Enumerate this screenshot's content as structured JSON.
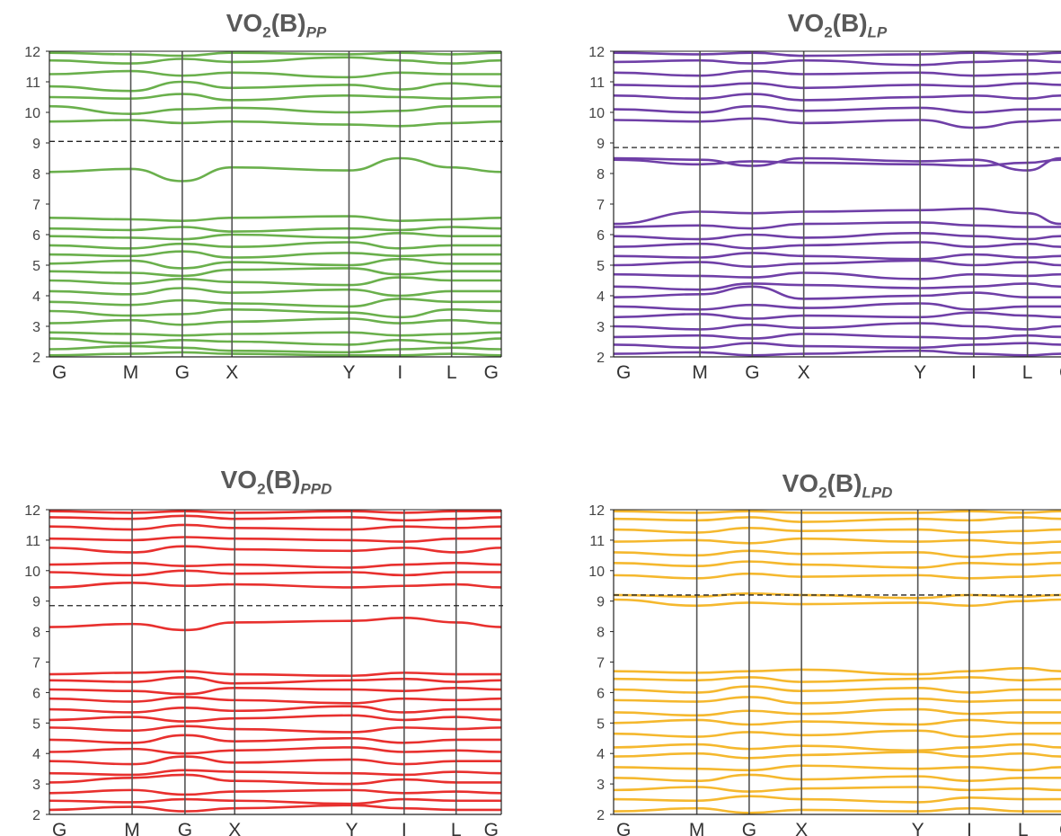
{
  "chart_data": [
    {
      "type": "line",
      "title": {
        "main": "VO",
        "num": "2",
        "mid": "(B)",
        "sub": "PP"
      },
      "ylim": [
        2,
        12
      ],
      "y_ticks": [
        "2",
        "3",
        "4",
        "5",
        "6",
        "7",
        "8",
        "9",
        "10",
        "11",
        "12"
      ],
      "k_labels": [
        "G",
        "M",
        "G",
        "X",
        "Y",
        "I",
        "L",
        "G"
      ],
      "k_positions": [
        0,
        0.18,
        0.294,
        0.404,
        0.663,
        0.776,
        0.89,
        1.0
      ],
      "fermi_level": 9.05,
      "band_color": "#6ab04c",
      "bands": [
        [
          2.05,
          2.1,
          2.15,
          2.1,
          2.05,
          2.05,
          2.1,
          2.05
        ],
        [
          2.25,
          2.35,
          2.3,
          2.2,
          2.15,
          2.25,
          2.3,
          2.25
        ],
        [
          2.6,
          2.45,
          2.55,
          2.5,
          2.4,
          2.55,
          2.45,
          2.6
        ],
        [
          2.8,
          2.75,
          2.7,
          2.75,
          2.8,
          2.7,
          2.75,
          2.8
        ],
        [
          3.1,
          3.2,
          3.05,
          3.15,
          3.25,
          3.1,
          3.2,
          3.1
        ],
        [
          3.5,
          3.35,
          3.4,
          3.55,
          3.45,
          3.3,
          3.55,
          3.5
        ],
        [
          3.8,
          3.7,
          3.85,
          3.75,
          3.65,
          3.9,
          3.8,
          3.8
        ],
        [
          4.15,
          4.05,
          4.25,
          4.1,
          4.2,
          4.0,
          4.15,
          4.15
        ],
        [
          4.5,
          4.4,
          4.55,
          4.45,
          4.35,
          4.6,
          4.5,
          4.5
        ],
        [
          4.8,
          4.75,
          4.65,
          4.85,
          4.9,
          4.7,
          4.8,
          4.8
        ],
        [
          5.05,
          5.15,
          4.9,
          5.1,
          5.0,
          5.2,
          5.05,
          5.05
        ],
        [
          5.35,
          5.3,
          5.45,
          5.25,
          5.4,
          5.3,
          5.35,
          5.35
        ],
        [
          5.65,
          5.55,
          5.7,
          5.6,
          5.75,
          5.55,
          5.65,
          5.65
        ],
        [
          5.95,
          5.9,
          5.85,
          6.0,
          5.9,
          6.05,
          5.95,
          5.95
        ],
        [
          6.2,
          6.15,
          6.25,
          6.1,
          6.2,
          6.15,
          6.25,
          6.2
        ],
        [
          6.55,
          6.5,
          6.45,
          6.55,
          6.6,
          6.45,
          6.5,
          6.55
        ],
        [
          8.05,
          8.15,
          7.75,
          8.2,
          8.1,
          8.5,
          8.2,
          8.05
        ],
        [
          9.7,
          9.75,
          9.65,
          9.7,
          9.6,
          9.55,
          9.65,
          9.7
        ],
        [
          10.2,
          9.95,
          10.1,
          10.15,
          10.0,
          10.05,
          10.2,
          10.2
        ],
        [
          10.5,
          10.45,
          10.6,
          10.4,
          10.55,
          10.5,
          10.45,
          10.5
        ],
        [
          10.85,
          10.7,
          11.0,
          10.8,
          10.9,
          10.75,
          10.95,
          10.85
        ],
        [
          11.25,
          11.35,
          11.2,
          11.3,
          11.15,
          11.3,
          11.25,
          11.25
        ],
        [
          11.7,
          11.6,
          11.75,
          11.65,
          11.8,
          11.7,
          11.6,
          11.7
        ],
        [
          11.95,
          11.9,
          11.85,
          11.95,
          11.9,
          11.95,
          11.9,
          11.95
        ]
      ]
    },
    {
      "type": "line",
      "title": {
        "main": "VO",
        "num": "2",
        "mid": "(B)",
        "sub": "LP"
      },
      "ylim": [
        2,
        12
      ],
      "y_ticks": [
        "2",
        "3",
        "4",
        "5",
        "6",
        "7",
        "8",
        "9",
        "10",
        "11",
        "12"
      ],
      "k_labels": [
        "G",
        "M",
        "G",
        "X",
        "Y",
        "I",
        "L",
        "G"
      ],
      "k_positions": [
        0,
        0.193,
        0.31,
        0.425,
        0.685,
        0.805,
        0.925,
        1.0
      ],
      "fermi_level": 8.85,
      "band_color": "#6f3fa7",
      "bands": [
        [
          2.1,
          2.15,
          2.05,
          2.1,
          2.2,
          2.1,
          2.05,
          2.1
        ],
        [
          2.4,
          2.3,
          2.45,
          2.35,
          2.3,
          2.4,
          2.45,
          2.4
        ],
        [
          2.65,
          2.7,
          2.6,
          2.75,
          2.65,
          2.6,
          2.7,
          2.65
        ],
        [
          3.0,
          2.9,
          3.05,
          2.95,
          3.1,
          3.0,
          2.9,
          3.0
        ],
        [
          3.3,
          3.4,
          3.25,
          3.35,
          3.3,
          3.45,
          3.35,
          3.3
        ],
        [
          3.65,
          3.55,
          3.7,
          3.6,
          3.75,
          3.55,
          3.65,
          3.65
        ],
        [
          3.95,
          4.05,
          4.3,
          3.9,
          4.0,
          4.1,
          3.95,
          3.95
        ],
        [
          4.3,
          4.2,
          4.4,
          4.35,
          4.25,
          4.3,
          4.4,
          4.3
        ],
        [
          4.7,
          4.65,
          4.6,
          4.75,
          4.55,
          4.7,
          4.65,
          4.7
        ],
        [
          5.0,
          5.1,
          4.95,
          5.05,
          5.15,
          5.0,
          5.1,
          5.0
        ],
        [
          5.3,
          5.25,
          5.4,
          5.3,
          5.2,
          5.35,
          5.25,
          5.3
        ],
        [
          5.6,
          5.7,
          5.55,
          5.65,
          5.75,
          5.6,
          5.7,
          5.6
        ],
        [
          5.95,
          5.85,
          6.0,
          5.9,
          6.05,
          5.95,
          5.85,
          5.95
        ],
        [
          6.25,
          6.3,
          6.2,
          6.35,
          6.4,
          6.3,
          6.25,
          6.25
        ],
        [
          6.35,
          6.75,
          6.7,
          6.75,
          6.8,
          6.85,
          6.7,
          6.35
        ],
        [
          8.45,
          8.3,
          8.4,
          8.35,
          8.3,
          8.25,
          8.35,
          8.45
        ],
        [
          8.5,
          8.45,
          8.25,
          8.5,
          8.4,
          8.45,
          8.1,
          8.5
        ],
        [
          9.75,
          9.7,
          9.8,
          9.65,
          9.75,
          9.5,
          9.7,
          9.75
        ],
        [
          10.1,
          10.0,
          10.2,
          10.05,
          10.15,
          10.0,
          10.1,
          10.1
        ],
        [
          10.55,
          10.45,
          10.6,
          10.4,
          10.5,
          10.55,
          10.45,
          10.55
        ],
        [
          10.9,
          10.85,
          10.95,
          10.8,
          10.9,
          10.85,
          10.95,
          10.9
        ],
        [
          11.3,
          11.2,
          11.35,
          11.25,
          11.3,
          11.2,
          11.25,
          11.3
        ],
        [
          11.65,
          11.7,
          11.6,
          11.7,
          11.55,
          11.65,
          11.7,
          11.65
        ],
        [
          11.95,
          11.9,
          11.95,
          11.85,
          11.9,
          11.95,
          11.9,
          11.95
        ]
      ]
    },
    {
      "type": "line",
      "title": {
        "main": "VO",
        "num": "2",
        "mid": "(B)",
        "sub": "PPD"
      },
      "ylim": [
        2,
        12
      ],
      "y_ticks": [
        "2",
        "3",
        "4",
        "5",
        "6",
        "7",
        "8",
        "9",
        "10",
        "11",
        "12"
      ],
      "k_labels": [
        "G",
        "M",
        "G",
        "X",
        "Y",
        "I",
        "L",
        "G"
      ],
      "k_positions": [
        0,
        0.183,
        0.3,
        0.41,
        0.669,
        0.785,
        0.9,
        1.0
      ],
      "fermi_level": 8.85,
      "band_color": "#e8302e",
      "bands": [
        [
          2.15,
          2.25,
          2.1,
          2.2,
          2.3,
          2.2,
          2.15,
          2.15
        ],
        [
          2.45,
          2.4,
          2.5,
          2.45,
          2.35,
          2.5,
          2.45,
          2.45
        ],
        [
          2.7,
          2.8,
          2.65,
          2.75,
          2.8,
          2.7,
          2.75,
          2.7
        ],
        [
          3.05,
          3.2,
          3.3,
          3.1,
          3.0,
          3.15,
          3.05,
          3.05
        ],
        [
          3.35,
          3.3,
          3.45,
          3.4,
          3.35,
          3.3,
          3.4,
          3.35
        ],
        [
          3.75,
          3.65,
          3.9,
          3.7,
          3.8,
          3.65,
          3.75,
          3.75
        ],
        [
          4.05,
          4.15,
          4.0,
          4.1,
          4.2,
          4.05,
          4.1,
          4.05
        ],
        [
          4.45,
          4.35,
          4.6,
          4.4,
          4.5,
          4.35,
          4.45,
          4.45
        ],
        [
          4.85,
          4.75,
          4.9,
          4.8,
          4.7,
          4.85,
          4.8,
          4.85
        ],
        [
          5.1,
          5.2,
          5.05,
          5.15,
          5.25,
          5.1,
          5.2,
          5.1
        ],
        [
          5.45,
          5.35,
          5.5,
          5.4,
          5.55,
          5.35,
          5.45,
          5.45
        ],
        [
          5.8,
          5.7,
          5.85,
          5.75,
          5.65,
          5.8,
          5.75,
          5.8
        ],
        [
          6.1,
          6.05,
          5.95,
          6.15,
          6.1,
          6.05,
          6.15,
          6.1
        ],
        [
          6.4,
          6.35,
          6.5,
          6.3,
          6.4,
          6.45,
          6.35,
          6.4
        ],
        [
          6.6,
          6.65,
          6.7,
          6.6,
          6.55,
          6.65,
          6.6,
          6.6
        ],
        [
          8.15,
          8.25,
          8.05,
          8.3,
          8.35,
          8.45,
          8.3,
          8.15
        ],
        [
          9.45,
          9.6,
          9.5,
          9.55,
          9.45,
          9.5,
          9.55,
          9.45
        ],
        [
          9.95,
          9.85,
          10.0,
          9.9,
          9.95,
          9.85,
          9.95,
          9.95
        ],
        [
          10.2,
          10.25,
          10.15,
          10.2,
          10.1,
          10.2,
          10.25,
          10.2
        ],
        [
          10.75,
          10.6,
          10.8,
          10.7,
          10.65,
          10.75,
          10.6,
          10.75
        ],
        [
          11.05,
          11.0,
          11.1,
          11.05,
          11.0,
          10.95,
          11.05,
          11.05
        ],
        [
          11.45,
          11.35,
          11.5,
          11.4,
          11.35,
          11.45,
          11.4,
          11.45
        ],
        [
          11.75,
          11.7,
          11.8,
          11.7,
          11.75,
          11.65,
          11.7,
          11.75
        ],
        [
          11.95,
          11.9,
          11.95,
          11.9,
          11.95,
          11.9,
          11.95,
          11.95
        ]
      ]
    },
    {
      "type": "line",
      "title": {
        "main": "VO",
        "num": "2",
        "mid": "(B)",
        "sub": "LPD"
      },
      "ylim": [
        2,
        12
      ],
      "y_ticks": [
        "2",
        "3",
        "4",
        "5",
        "6",
        "7",
        "8",
        "9",
        "10",
        "11",
        "12"
      ],
      "k_labels": [
        "G",
        "M",
        "G",
        "X",
        "Y",
        "I",
        "L",
        "G"
      ],
      "k_positions": [
        0,
        0.186,
        0.303,
        0.42,
        0.68,
        0.795,
        0.915,
        1.0
      ],
      "fermi_level": 9.2,
      "band_color": "#f5b82e",
      "bands": [
        [
          2.1,
          2.2,
          2.05,
          2.15,
          2.1,
          2.2,
          2.1,
          2.1
        ],
        [
          2.5,
          2.45,
          2.6,
          2.5,
          2.4,
          2.55,
          2.5,
          2.5
        ],
        [
          2.8,
          2.9,
          2.75,
          2.85,
          2.9,
          2.8,
          2.85,
          2.8
        ],
        [
          3.2,
          3.1,
          3.3,
          3.15,
          3.25,
          3.1,
          3.2,
          3.2
        ],
        [
          3.55,
          3.5,
          3.45,
          3.6,
          3.5,
          3.55,
          3.45,
          3.55
        ],
        [
          3.9,
          4.0,
          3.85,
          3.95,
          4.05,
          3.9,
          4.0,
          3.9
        ],
        [
          4.2,
          4.3,
          4.15,
          4.25,
          4.1,
          4.2,
          4.3,
          4.2
        ],
        [
          4.65,
          4.55,
          4.7,
          4.6,
          4.75,
          4.55,
          4.65,
          4.65
        ],
        [
          5.0,
          5.1,
          4.95,
          5.05,
          4.95,
          5.1,
          5.0,
          5.0
        ],
        [
          5.35,
          5.25,
          5.4,
          5.3,
          5.45,
          5.3,
          5.35,
          5.35
        ],
        [
          5.75,
          5.7,
          5.85,
          5.65,
          5.8,
          5.7,
          5.75,
          5.75
        ],
        [
          6.1,
          6.0,
          6.2,
          6.05,
          6.15,
          6.0,
          6.1,
          6.1
        ],
        [
          6.45,
          6.4,
          6.5,
          6.35,
          6.45,
          6.5,
          6.4,
          6.45
        ],
        [
          6.7,
          6.65,
          6.7,
          6.75,
          6.6,
          6.7,
          6.8,
          6.7
        ],
        [
          9.05,
          8.85,
          8.95,
          8.9,
          8.95,
          8.85,
          9.0,
          9.05
        ],
        [
          9.2,
          9.15,
          9.25,
          9.2,
          9.1,
          9.2,
          9.15,
          9.2
        ],
        [
          9.85,
          9.75,
          9.9,
          9.8,
          9.85,
          9.75,
          9.8,
          9.85
        ],
        [
          10.25,
          10.15,
          10.3,
          10.2,
          10.1,
          10.25,
          10.2,
          10.25
        ],
        [
          10.6,
          10.5,
          10.65,
          10.55,
          10.6,
          10.45,
          10.55,
          10.6
        ],
        [
          10.95,
          11.0,
          10.9,
          11.05,
          10.95,
          11.0,
          10.9,
          10.95
        ],
        [
          11.35,
          11.25,
          11.4,
          11.3,
          11.35,
          11.25,
          11.3,
          11.35
        ],
        [
          11.7,
          11.65,
          11.75,
          11.6,
          11.7,
          11.65,
          11.75,
          11.7
        ],
        [
          11.95,
          11.9,
          11.95,
          11.9,
          11.9,
          11.95,
          11.9,
          11.95
        ]
      ]
    }
  ]
}
